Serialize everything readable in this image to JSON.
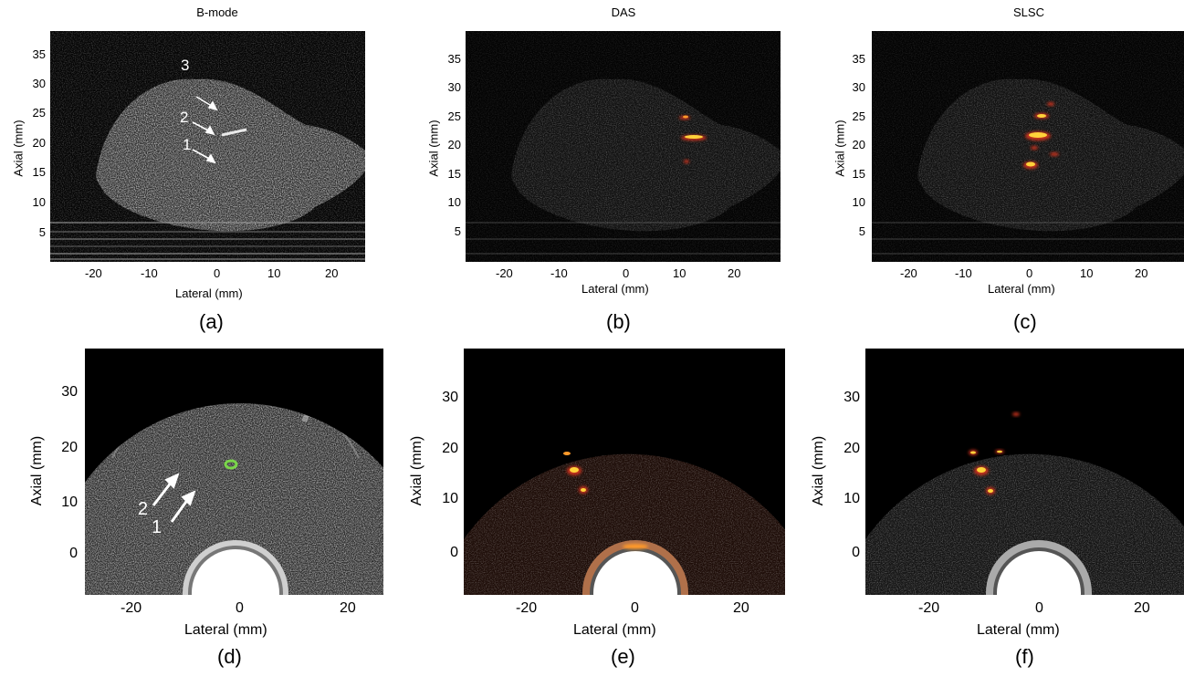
{
  "figure": {
    "panels": [
      {
        "id": "a",
        "title": "B-mode",
        "caption": "(a)",
        "xlabel": "Lateral (mm)",
        "ylabel": "Axial (mm)",
        "xticks": [
          "-20",
          "-10",
          "0",
          "10",
          "20"
        ],
        "yticks": [
          "35",
          "30",
          "25",
          "20",
          "15",
          "10",
          "5"
        ],
        "annotations": [
          "3",
          "2",
          "1"
        ]
      },
      {
        "id": "b",
        "title": "DAS",
        "caption": "(b)",
        "xlabel": "Lateral (mm)",
        "ylabel": "Axial (mm)",
        "xticks": [
          "-20",
          "-10",
          "0",
          "10",
          "20"
        ],
        "yticks": [
          "35",
          "30",
          "25",
          "20",
          "15",
          "10",
          "5"
        ]
      },
      {
        "id": "c",
        "title": "SLSC",
        "caption": "(c)",
        "xlabel": "Lateral (mm)",
        "ylabel": "Axial (mm)",
        "xticks": [
          "-20",
          "-10",
          "0",
          "10",
          "20"
        ],
        "yticks": [
          "35",
          "30",
          "25",
          "20",
          "15",
          "10",
          "5"
        ]
      },
      {
        "id": "d",
        "caption": "(d)",
        "xlabel": "Lateral (mm)",
        "ylabel": "Axial (mm)",
        "xticks": [
          "-20",
          "0",
          "20"
        ],
        "yticks": [
          "30",
          "20",
          "10",
          "0"
        ],
        "annotations": [
          "2",
          "1"
        ]
      },
      {
        "id": "e",
        "caption": "(e)",
        "xlabel": "Lateral (mm)",
        "ylabel": "Axial (mm)",
        "xticks": [
          "-20",
          "0",
          "20"
        ],
        "yticks": [
          "30",
          "20",
          "10",
          "0"
        ]
      },
      {
        "id": "f",
        "caption": "(f)",
        "xlabel": "Lateral (mm)",
        "ylabel": "Axial (mm)",
        "xticks": [
          "-20",
          "0",
          "20"
        ],
        "yticks": [
          "30",
          "20",
          "10",
          "0"
        ]
      }
    ],
    "colors": {
      "background": "#000000",
      "tissue": "#8a8a8a",
      "signal_hot": "#ffd23a",
      "signal_red": "#c8321e",
      "marker_green": "#7ad64a"
    }
  }
}
